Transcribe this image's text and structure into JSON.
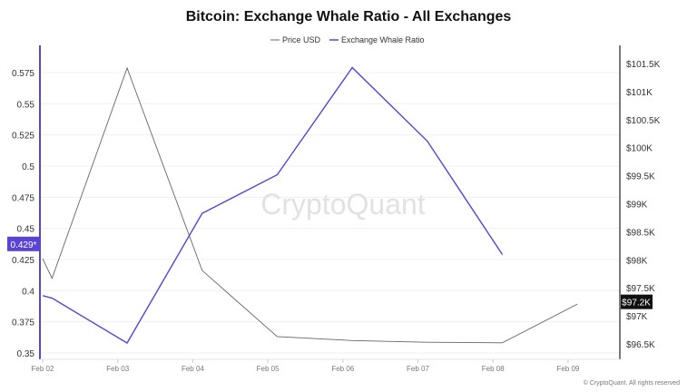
{
  "chart_data": {
    "type": "line",
    "title": "Bitcoin: Exchange Whale Ratio - All Exchanges",
    "legend_position": "top",
    "grid": true,
    "watermark": "CryptoQuant",
    "copyright": "© CryptoQuant. All rights reserved",
    "x_ticks": [
      "Feb 02",
      "Feb 03",
      "Feb 04",
      "Feb 05",
      "Feb 06",
      "Feb 07",
      "Feb 08",
      "Feb 09"
    ],
    "left_axis": {
      "ticks": [
        "0.35",
        "0.375",
        "0.4",
        "0.425",
        "0.45",
        "0.475",
        "0.5",
        "0.525",
        "0.55",
        "0.575"
      ],
      "ylim": [
        0.35,
        0.575
      ],
      "color": "#5b43d6"
    },
    "right_axis": {
      "ticks": [
        "$96.5K",
        "$97K",
        "$97.5K",
        "$98K",
        "$98.5K",
        "$99K",
        "$99.5K",
        "$100K",
        "$100.5K",
        "$101K",
        "$101.5K"
      ],
      "ylim": [
        96.5,
        101.5
      ],
      "unit": "K USD"
    },
    "series": [
      {
        "name": "Price USD",
        "axis": "right",
        "color": "#666666",
        "current_label": "$97.2K",
        "x": [
          "Feb 02 00:00",
          "Feb 02 03:00",
          "Feb 03 03:00",
          "Feb 04 03:00",
          "Feb 05 03:00",
          "Feb 06 03:00",
          "Feb 07 03:00",
          "Feb 08 03:00",
          "Feb 09 03:00"
        ],
        "values": [
          98.02,
          97.67,
          101.42,
          97.81,
          96.63,
          96.56,
          96.53,
          96.52,
          97.21
        ]
      },
      {
        "name": "Exchange Whale Ratio",
        "axis": "left",
        "color": "#5b43d6",
        "current_label": "0.429*",
        "x": [
          "Feb 02 00:00",
          "Feb 02 03:00",
          "Feb 03 03:00",
          "Feb 04 03:00",
          "Feb 05 03:00",
          "Feb 06 03:00",
          "Feb 07 03:00",
          "Feb 08 03:00"
        ],
        "values": [
          0.396,
          0.394,
          0.358,
          0.462,
          0.493,
          0.579,
          0.52,
          0.429
        ]
      }
    ]
  }
}
